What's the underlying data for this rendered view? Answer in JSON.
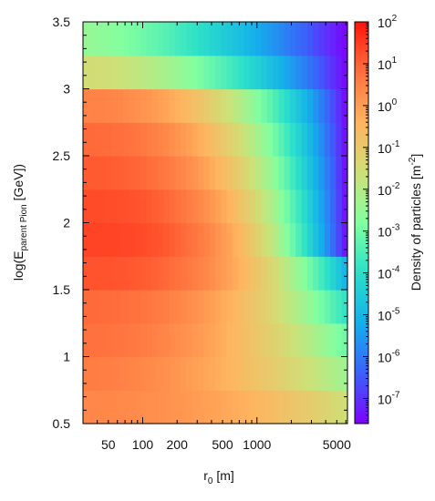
{
  "chart_data": {
    "type": "heatmap",
    "title": "",
    "xlabel": "r",
    "xlabel_sub": "0",
    "xlabel_unit": " [m]",
    "ylabel_main": "log(E",
    "ylabel_sub": "parent Pion",
    "ylabel_end": " [GeV])",
    "x_scale": "log",
    "xlim": [
      30,
      6200
    ],
    "ylim": [
      0.5,
      3.5
    ],
    "x_tick_labels": [
      {
        "value": 50,
        "label": "50"
      },
      {
        "value": 100,
        "label": "100"
      },
      {
        "value": 200,
        "label": "200"
      },
      {
        "value": 500,
        "label": "500"
      },
      {
        "value": 1000,
        "label": "1000"
      },
      {
        "value": 5000,
        "label": "5000"
      }
    ],
    "y_tick_labels": [
      {
        "value": 0.5,
        "label": "0.5"
      },
      {
        "value": 1.0,
        "label": "1"
      },
      {
        "value": 1.5,
        "label": "1.5"
      },
      {
        "value": 2.0,
        "label": "2"
      },
      {
        "value": 2.5,
        "label": "2.5"
      },
      {
        "value": 3.0,
        "label": "3"
      },
      {
        "value": 3.5,
        "label": "3.5"
      }
    ],
    "colorbar": {
      "label": "Density of particles [m",
      "label_sup": "-2",
      "label_end": "]",
      "scale": "log",
      "range_log10": [
        -7.6,
        2
      ],
      "colormap": "rainbow",
      "tick_labels": [
        {
          "exp": 2,
          "base": "10",
          "sup": "2"
        },
        {
          "exp": 1,
          "base": "10",
          "sup": "1"
        },
        {
          "exp": 0,
          "base": "10",
          "sup": "0"
        },
        {
          "exp": -1,
          "base": "10",
          "sup": "-1"
        },
        {
          "exp": -2,
          "base": "10",
          "sup": "-2"
        },
        {
          "exp": -3,
          "base": "10",
          "sup": "-3"
        },
        {
          "exp": -4,
          "base": "10",
          "sup": "-4"
        },
        {
          "exp": -5,
          "base": "10",
          "sup": "-5"
        },
        {
          "exp": -6,
          "base": "10",
          "sup": "-6"
        },
        {
          "exp": -7,
          "base": "10",
          "sup": "-7"
        }
      ]
    },
    "rows": [
      {
        "y": [
          0.5,
          0.75
        ],
        "start_log10": 0.4,
        "end_log10": -1.6,
        "sharpness": 2.0
      },
      {
        "y": [
          0.75,
          1.0
        ],
        "start_log10": 0.6,
        "end_log10": -2.4,
        "sharpness": 1.8
      },
      {
        "y": [
          1.0,
          1.25
        ],
        "start_log10": 0.8,
        "end_log10": -3.1,
        "sharpness": 2.0
      },
      {
        "y": [
          1.25,
          1.5
        ],
        "start_log10": 0.9,
        "end_log10": -4.0,
        "sharpness": 2.3
      },
      {
        "y": [
          1.5,
          1.75
        ],
        "start_log10": 1.2,
        "end_log10": -5.2,
        "sharpness": 2.7
      },
      {
        "y": [
          1.75,
          2.0
        ],
        "start_log10": 1.4,
        "end_log10": -7.6,
        "sharpness": 3.0
      },
      {
        "y": [
          2.0,
          2.25
        ],
        "start_log10": 1.3,
        "end_log10": -7.6,
        "sharpness": 2.8
      },
      {
        "y": [
          2.25,
          2.5
        ],
        "start_log10": 1.1,
        "end_log10": -7.6,
        "sharpness": 2.6
      },
      {
        "y": [
          2.5,
          2.75
        ],
        "start_log10": 0.9,
        "end_log10": -7.6,
        "sharpness": 2.4
      },
      {
        "y": [
          2.75,
          3.0
        ],
        "start_log10": 0.5,
        "end_log10": -7.6,
        "sharpness": 2.2
      },
      {
        "y": [
          3.0,
          3.25
        ],
        "start_log10": -1.5,
        "end_log10": -7.6,
        "sharpness": 1.8
      },
      {
        "y": [
          3.25,
          3.5
        ],
        "start_log10": -2.5,
        "end_log10": -7.6,
        "sharpness": 1.5
      }
    ]
  }
}
